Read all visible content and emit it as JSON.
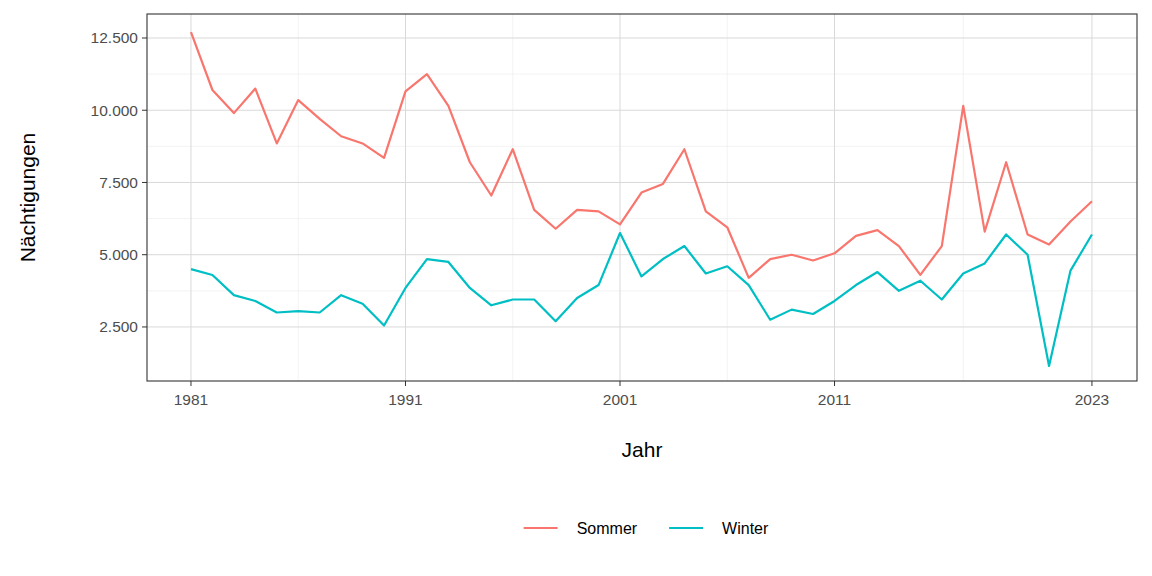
{
  "chart_data": {
    "type": "line",
    "x_label": "Jahr",
    "y_label": "Nächtigungen",
    "x": [
      1981,
      1982,
      1983,
      1984,
      1985,
      1986,
      1987,
      1988,
      1989,
      1990,
      1991,
      1992,
      1993,
      1994,
      1995,
      1996,
      1997,
      1998,
      1999,
      2000,
      2001,
      2002,
      2003,
      2004,
      2005,
      2006,
      2007,
      2008,
      2009,
      2010,
      2011,
      2012,
      2013,
      2014,
      2015,
      2016,
      2017,
      2018,
      2019,
      2020,
      2021,
      2022,
      2023
    ],
    "series": [
      {
        "name": "Sommer",
        "color": "#F8766D",
        "values": [
          12700,
          10700,
          9900,
          10750,
          8850,
          10350,
          9700,
          9100,
          8850,
          8350,
          10650,
          11250,
          10150,
          8200,
          7050,
          8650,
          6550,
          5900,
          6550,
          6500,
          6050,
          7150,
          7450,
          8650,
          6500,
          5950,
          4200,
          4850,
          5000,
          4800,
          5050,
          5650,
          5850,
          5300,
          4300,
          5300,
          10150,
          5800,
          8200,
          5700,
          5350,
          6150,
          6850
        ]
      },
      {
        "name": "Winter",
        "color": "#00BFC4",
        "values": [
          4500,
          4300,
          3600,
          3400,
          3000,
          3050,
          3000,
          3600,
          3300,
          2550,
          3850,
          4850,
          4750,
          3850,
          3250,
          3450,
          3450,
          2700,
          3500,
          3950,
          5750,
          4250,
          4850,
          5300,
          4350,
          4600,
          3950,
          2750,
          3100,
          2950,
          3400,
          3950,
          4400,
          3750,
          4100,
          3450,
          4350,
          4700,
          5700,
          5000,
          1150,
          4450,
          5700
        ]
      }
    ],
    "xlim": [
      1978.95,
      2025.1
    ],
    "xticks": [
      1981,
      1991,
      2001,
      2011,
      2023
    ],
    "ylim": [
      630,
      13330
    ],
    "yticks": [
      {
        "value": 2500,
        "label": "2.500"
      },
      {
        "value": 5000,
        "label": "5.000"
      },
      {
        "value": 7500,
        "label": "7.500"
      },
      {
        "value": 10000,
        "label": "10.000"
      },
      {
        "value": 12500,
        "label": "12.500"
      }
    ],
    "grid": true,
    "legend": "bottom"
  }
}
